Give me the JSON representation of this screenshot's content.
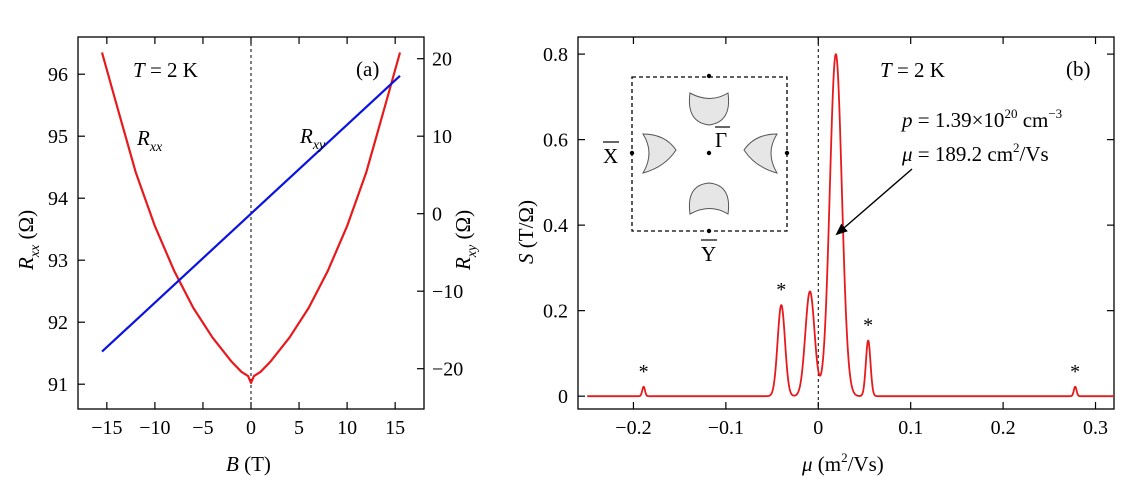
{
  "colors": {
    "rxx": "#e8191c",
    "rxy": "#0a12e0",
    "spectrum": "#e8191c",
    "axis": "#000000",
    "pocket_fill": "#e6e6e6"
  },
  "chart_data": [
    {
      "panel": "(a)",
      "type": "line",
      "annotation_T": {
        "italic": "T",
        "rest": " = 2 K"
      },
      "xlabel": {
        "italic": "B",
        "rest": " (T)"
      },
      "ylabel_left": {
        "main": "R",
        "sub": "xx",
        "unit": " (Ω)"
      },
      "ylabel_right": {
        "main": "R",
        "sub": "xy",
        "unit": " (Ω)"
      },
      "xlim": [
        -18,
        18
      ],
      "ylim_left": [
        90.6,
        96.6
      ],
      "ylim_right": [
        -25.2,
        22.8
      ],
      "xticks": [
        -15,
        -10,
        -5,
        0,
        5,
        10,
        15
      ],
      "xtick_labels": [
        "−15",
        "−10",
        "−5",
        "0",
        "5",
        "10",
        "15"
      ],
      "yticks_left": [
        91,
        92,
        93,
        94,
        95,
        96
      ],
      "yticks_left_labels": [
        "91",
        "92",
        "93",
        "94",
        "95",
        "96"
      ],
      "yticks_right": [
        -20,
        -10,
        0,
        10,
        20
      ],
      "yticks_right_labels": [
        "−20",
        "−10",
        "0",
        "10",
        "20"
      ],
      "grid": false,
      "series": [
        {
          "name": "Rxx",
          "axis": "left",
          "x": [
            -15.5,
            -14,
            -12,
            -10,
            -8,
            -6,
            -4,
            -2,
            -1,
            -0.3,
            0,
            0.3,
            1,
            2,
            4,
            6,
            8,
            10,
            12,
            14,
            15.5
          ],
          "y": [
            96.35,
            95.52,
            94.42,
            93.55,
            92.83,
            92.23,
            91.75,
            91.36,
            91.2,
            91.13,
            91.02,
            91.13,
            91.2,
            91.36,
            91.75,
            92.23,
            92.83,
            93.55,
            94.42,
            95.52,
            96.35
          ]
        },
        {
          "name": "Rxy",
          "axis": "right",
          "x": [
            -15.5,
            15.5
          ],
          "y": [
            -17.8,
            17.8
          ]
        }
      ]
    },
    {
      "panel": "(b)",
      "type": "line",
      "annotation_T": {
        "italic": "T",
        "rest": " = 2 K"
      },
      "annotation_p": {
        "italic": "p",
        "rest": " = 1.39×10",
        "sup": "20",
        "unit": " cm",
        "unit_sup": "−3"
      },
      "annotation_mu": {
        "italic": "μ",
        "rest": " = 189.2 cm",
        "sup": "2",
        "unit": "/Vs"
      },
      "xlabel": {
        "italic": "μ",
        "rest": " (m",
        "sup": "2",
        "tail": "/Vs)"
      },
      "ylabel": {
        "italic": "S",
        "rest": " (T/Ω)"
      },
      "xlim": [
        -0.26,
        0.32
      ],
      "ylim": [
        -0.03,
        0.84
      ],
      "xticks": [
        -0.2,
        -0.1,
        0,
        0.1,
        0.2,
        0.3
      ],
      "xtick_labels": [
        "−0.2",
        "−0.1",
        "0",
        "0.1",
        "0.2",
        "0.3"
      ],
      "yticks": [
        0,
        0.2,
        0.4,
        0.6,
        0.8
      ],
      "ytick_labels": [
        "0",
        "0.2",
        "0.4",
        "0.6",
        "0.8"
      ],
      "grid": false,
      "peaks": [
        {
          "center": -0.189,
          "height": 0.022,
          "width": 0.0015,
          "marked": true
        },
        {
          "center": -0.04,
          "height": 0.213,
          "width": 0.004,
          "marked": true
        },
        {
          "center": -0.009,
          "height": 0.245,
          "width": 0.005,
          "marked": false
        },
        {
          "center": 0.019,
          "height": 0.8,
          "width": 0.0065,
          "marked": false
        },
        {
          "center": 0.054,
          "height": 0.13,
          "width": 0.0025,
          "marked": true
        },
        {
          "center": 0.278,
          "height": 0.022,
          "width": 0.0015,
          "marked": true
        }
      ],
      "marker_symbol": "*",
      "inset": {
        "labels": {
          "X": "X",
          "Y": "Y",
          "Gamma": "Γ"
        }
      }
    }
  ]
}
